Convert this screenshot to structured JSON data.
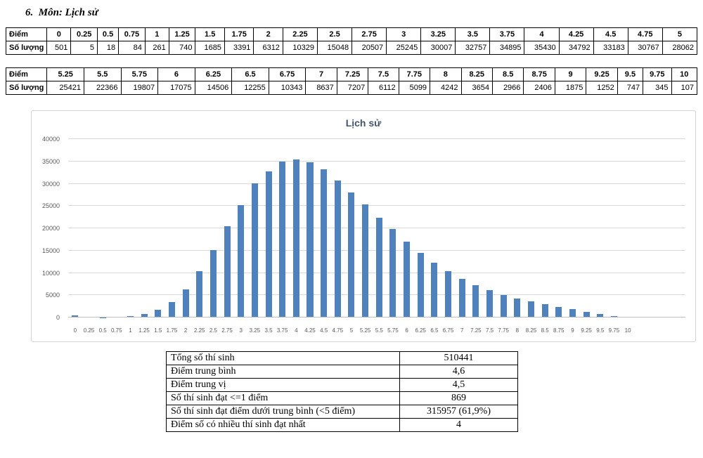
{
  "heading": "6.  Môn: Lịch sử",
  "score_tables": [
    {
      "row1_label": "Điểm",
      "row2_label": "Số lượng",
      "scores": [
        "0",
        "0.25",
        "0.5",
        "0.75",
        "1",
        "1.25",
        "1.5",
        "1.75",
        "2",
        "2.25",
        "2.5",
        "2.75",
        "3",
        "3.25",
        "3.5",
        "3.75",
        "4",
        "4.25",
        "4.5",
        "4.75",
        "5"
      ],
      "counts": [
        "501",
        "5",
        "18",
        "84",
        "261",
        "740",
        "1685",
        "3391",
        "6312",
        "10329",
        "15048",
        "20507",
        "25245",
        "30007",
        "32757",
        "34895",
        "35430",
        "34792",
        "33183",
        "30767",
        "28062"
      ]
    },
    {
      "row1_label": "Điểm",
      "row2_label": "Số lượng",
      "scores": [
        "5.25",
        "5.5",
        "5.75",
        "6",
        "6.25",
        "6.5",
        "6.75",
        "7",
        "7.25",
        "7.5",
        "7.75",
        "8",
        "8.25",
        "8.5",
        "8.75",
        "9",
        "9.25",
        "9.5",
        "9.75",
        "10"
      ],
      "counts": [
        "25421",
        "22366",
        "19807",
        "17075",
        "14506",
        "12255",
        "10343",
        "8637",
        "7207",
        "6112",
        "5099",
        "4242",
        "3654",
        "2966",
        "2406",
        "1875",
        "1252",
        "747",
        "345",
        "107"
      ]
    }
  ],
  "chart_data": {
    "type": "bar",
    "title": "Lịch sử",
    "xlabel": "",
    "ylabel": "",
    "categories": [
      "0",
      "0.25",
      "0.5",
      "0.75",
      "1",
      "1.25",
      "1.5",
      "1.75",
      "2",
      "2.25",
      "2.5",
      "2.75",
      "3",
      "3.25",
      "3.5",
      "3.75",
      "4",
      "4.25",
      "4.5",
      "4.75",
      "5",
      "5.25",
      "5.5",
      "5.75",
      "6",
      "6.25",
      "6.5",
      "6.75",
      "7",
      "7.25",
      "7.5",
      "7.75",
      "8",
      "8.25",
      "8.5",
      "8.75",
      "9",
      "9.25",
      "9.5",
      "9.75",
      "10"
    ],
    "values": [
      501,
      5,
      18,
      84,
      261,
      740,
      1685,
      3391,
      6312,
      10329,
      15048,
      20507,
      25245,
      30007,
      32757,
      34895,
      35430,
      34792,
      33183,
      30767,
      28062,
      25421,
      22366,
      19807,
      17075,
      14506,
      12255,
      10343,
      8637,
      7207,
      6112,
      5099,
      4242,
      3654,
      2966,
      2406,
      1875,
      1252,
      747,
      345,
      107
    ],
    "ylim": [
      0,
      40000
    ],
    "yticks": [
      0,
      5000,
      10000,
      15000,
      20000,
      25000,
      30000,
      35000,
      40000
    ],
    "grid": true,
    "legend": "none",
    "colors": {
      "bar": "#4f81bd",
      "gridline": "#d9d9d9",
      "axis_line": "#bfbfbf",
      "tick_label": "#595959",
      "title": "#44546a",
      "chart_border": "#d3d3d3"
    }
  },
  "summary_table": {
    "rows": [
      {
        "label": "Tổng số thí sinh",
        "value": "510441"
      },
      {
        "label": "Điểm trung bình",
        "value": "4,6"
      },
      {
        "label": "Điểm trung vị",
        "value": "4,5"
      },
      {
        "label": "Số thí sinh đạt <=1 điểm",
        "value": "869"
      },
      {
        "label": "Số thí sinh đạt điểm dưới trung bình (<5 điểm)",
        "value": "315957 (61,9%)"
      },
      {
        "label": "Điểm số có nhiều thí sinh đạt nhất",
        "value": "4"
      }
    ]
  }
}
